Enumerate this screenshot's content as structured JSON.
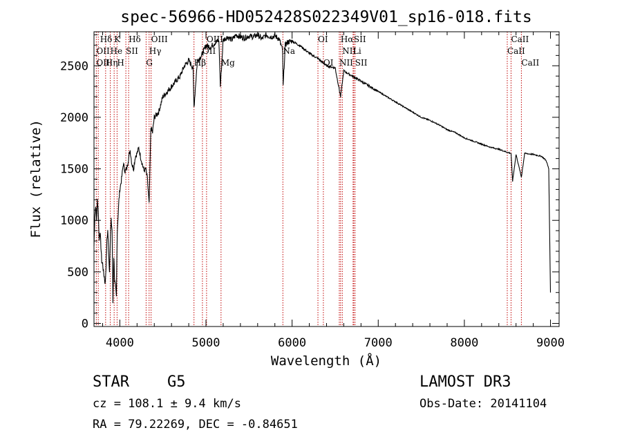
{
  "chart_data": {
    "type": "line",
    "title": "spec-56966-HD052428S022349V01_sp16-018.fits",
    "xlabel": "Wavelength (Å)",
    "ylabel": "Flux (relative)",
    "xlim": [
      3700,
      9100
    ],
    "ylim": [
      -30,
      2830
    ],
    "xticks": [
      4000,
      5000,
      6000,
      7000,
      8000,
      9000
    ],
    "yticks": [
      0,
      500,
      1000,
      1500,
      2000,
      2500
    ],
    "grid": false,
    "series": [
      {
        "x": [
          3700,
          3710,
          3720,
          3730,
          3740,
          3750,
          3760,
          3770,
          3780,
          3790,
          3800,
          3810,
          3820,
          3830,
          3840,
          3850,
          3860,
          3870,
          3880,
          3890,
          3900,
          3910,
          3920,
          3930,
          3940,
          3950,
          3960,
          3970,
          3980,
          3990,
          4000,
          4020,
          4040,
          4060,
          4080,
          4100,
          4120,
          4140,
          4160,
          4180,
          4200,
          4220,
          4240,
          4260,
          4280,
          4300,
          4320,
          4340,
          4360,
          4380,
          4400,
          4450,
          4500,
          4550,
          4600,
          4650,
          4700,
          4750,
          4800,
          4850,
          4861,
          4900,
          4950,
          5000,
          5050,
          5100,
          5150,
          5167,
          5200,
          5250,
          5300,
          5350,
          5400,
          5450,
          5500,
          5550,
          5600,
          5650,
          5700,
          5750,
          5800,
          5850,
          5890,
          5896,
          5920,
          5950,
          6000,
          6100,
          6200,
          6300,
          6400,
          6500,
          6563,
          6600,
          6700,
          6800,
          6900,
          7000,
          7100,
          7200,
          7300,
          7400,
          7500,
          7600,
          7700,
          7800,
          7900,
          8000,
          8100,
          8200,
          8300,
          8400,
          8500,
          8542,
          8560,
          8600,
          8662,
          8700,
          8800,
          8900,
          8950,
          8980,
          9000
        ],
        "y": [
          750,
          1050,
          1150,
          1000,
          1200,
          1100,
          800,
          900,
          750,
          600,
          580,
          500,
          450,
          380,
          550,
          800,
          900,
          700,
          500,
          850,
          1000,
          900,
          200,
          650,
          420,
          350,
          250,
          900,
          1050,
          1200,
          1300,
          1400,
          1550,
          1480,
          1500,
          1600,
          1680,
          1550,
          1500,
          1620,
          1650,
          1700,
          1620,
          1550,
          1480,
          1500,
          1400,
          1150,
          1900,
          1850,
          2000,
          2050,
          2200,
          2250,
          2300,
          2350,
          2400,
          2500,
          2550,
          2480,
          2100,
          2550,
          2600,
          2700,
          2680,
          2720,
          2750,
          2300,
          2750,
          2780,
          2750,
          2800,
          2780,
          2770,
          2790,
          2780,
          2800,
          2760,
          2800,
          2780,
          2790,
          2760,
          2650,
          2300,
          2700,
          2730,
          2740,
          2690,
          2620,
          2570,
          2500,
          2480,
          2200,
          2450,
          2400,
          2350,
          2300,
          2250,
          2200,
          2150,
          2100,
          2050,
          2000,
          1970,
          1930,
          1880,
          1850,
          1800,
          1770,
          1740,
          1710,
          1690,
          1660,
          1650,
          1380,
          1640,
          1420,
          1650,
          1640,
          1620,
          1580,
          1500,
          300
        ]
      }
    ],
    "annotations": [
      {
        "label": "Hδ",
        "x": 3770,
        "row": 1
      },
      {
        "label": "K",
        "x": 3934,
        "row": 1
      },
      {
        "label": "Hδ",
        "x": 4102,
        "row": 1
      },
      {
        "label": "OIII",
        "x": 4363,
        "row": 1
      },
      {
        "label": "OIII",
        "x": 5007,
        "row": 1
      },
      {
        "label": "OI",
        "x": 6300,
        "row": 1
      },
      {
        "label": "Hα",
        "x": 6563,
        "row": 1
      },
      {
        "label": "SII",
        "x": 6716,
        "row": 1
      },
      {
        "label": "CaII",
        "x": 8542,
        "row": 1
      },
      {
        "label": "OII",
        "x": 3727,
        "row": 2
      },
      {
        "label": "He",
        "x": 3889,
        "row": 2
      },
      {
        "label": "SII",
        "x": 4070,
        "row": 2
      },
      {
        "label": "Hγ",
        "x": 4340,
        "row": 2
      },
      {
        "label": "OII",
        "x": 4959,
        "row": 2
      },
      {
        "label": "Na",
        "x": 5893,
        "row": 2
      },
      {
        "label": "NII",
        "x": 6583,
        "row": 2
      },
      {
        "label": "Li",
        "x": 6708,
        "row": 2
      },
      {
        "label": "CaII",
        "x": 8498,
        "row": 2
      },
      {
        "label": "OII",
        "x": 3727,
        "row": 3
      },
      {
        "label": "Hη",
        "x": 3835,
        "row": 3
      },
      {
        "label": "H",
        "x": 3968,
        "row": 3
      },
      {
        "label": "G",
        "x": 4305,
        "row": 3
      },
      {
        "label": "Hβ",
        "x": 4861,
        "row": 3
      },
      {
        "label": "Mg",
        "x": 5175,
        "row": 3
      },
      {
        "label": "OI",
        "x": 6363,
        "row": 3
      },
      {
        "label": "NII",
        "x": 6548,
        "row": 3
      },
      {
        "label": "SII",
        "x": 6731,
        "row": 3
      },
      {
        "label": "CaII",
        "x": 8662,
        "row": 3
      }
    ],
    "lines_x": [
      3727,
      3750,
      3835,
      3889,
      3934,
      3968,
      4070,
      4102,
      4305,
      4340,
      4363,
      4861,
      4959,
      5007,
      5175,
      5893,
      6300,
      6363,
      6548,
      6563,
      6583,
      6708,
      6716,
      6731,
      8498,
      8542,
      8662
    ]
  },
  "info": {
    "object_type": "STAR",
    "subclass": "G5",
    "survey": "LAMOST DR3",
    "cz": "cz = 108.1 ± 9.4 km/s",
    "obs_date": "Obs-Date: 20141104",
    "coords": "RA =  79.22269, DEC =  -0.84651"
  }
}
